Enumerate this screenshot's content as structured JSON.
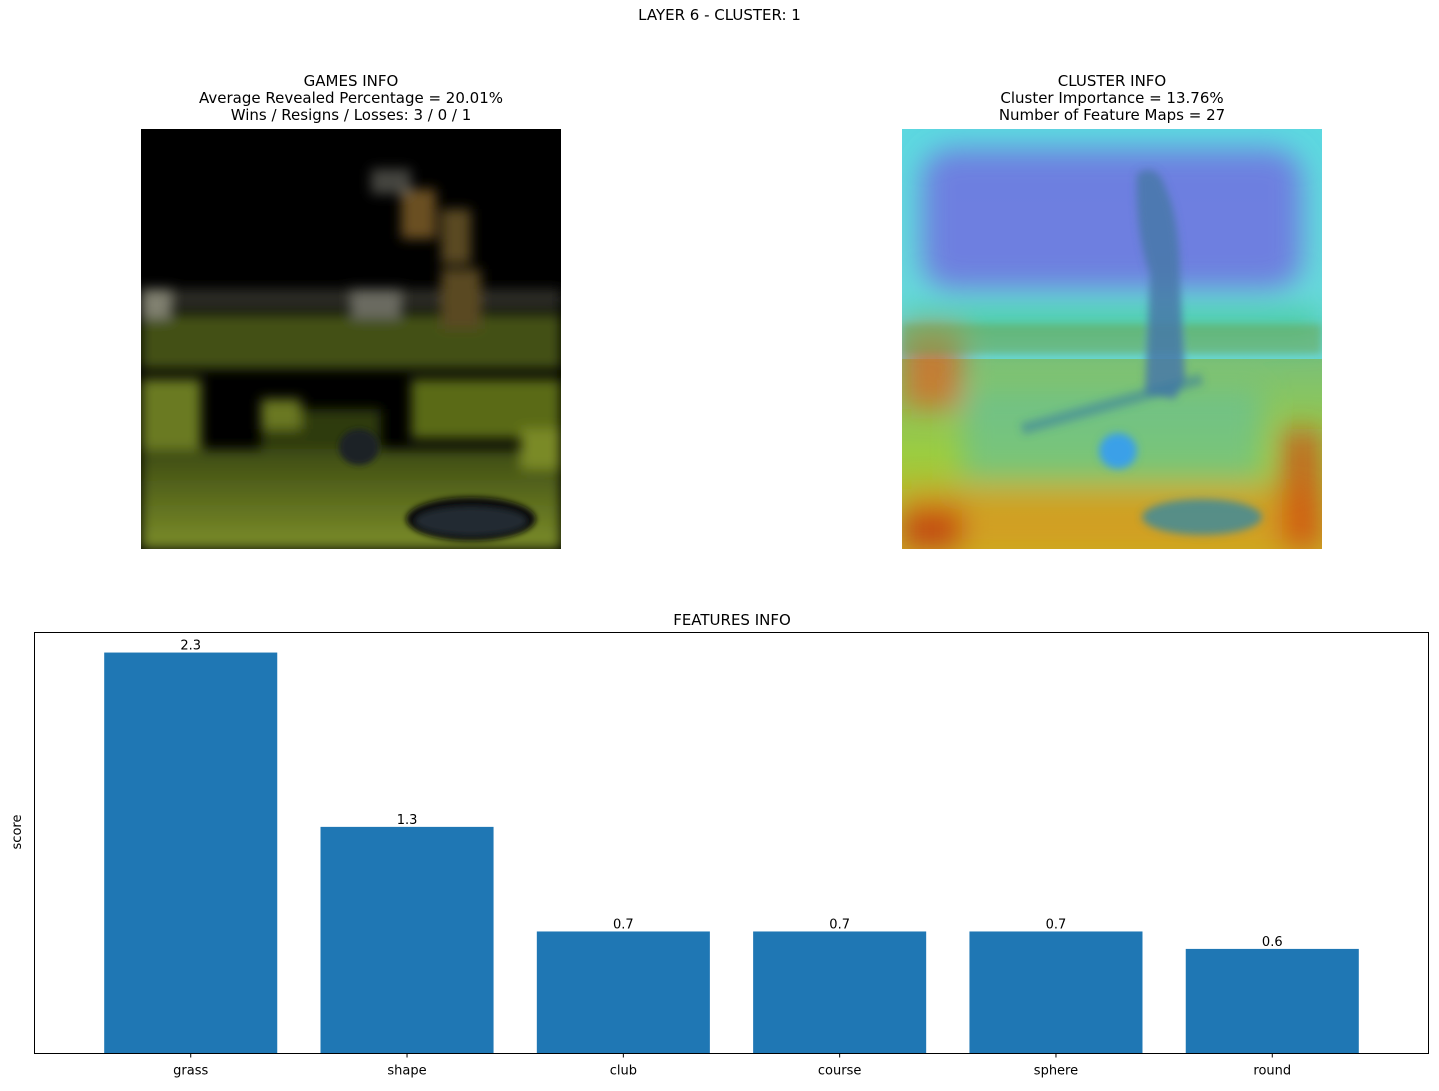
{
  "page": {
    "suptitle": "LAYER 6 - CLUSTER: 1"
  },
  "games_panel": {
    "title": "GAMES INFO",
    "line1": "Average Revealed Percentage = 20.01%",
    "line2": "Wins / Resigns / Losses: 3 / 0 / 1"
  },
  "cluster_panel": {
    "title": "CLUSTER INFO",
    "line1": "Cluster Importance = 13.76%",
    "line2": "Number of Feature Maps = 27"
  },
  "chart_data": {
    "type": "bar",
    "title": "FEATURES INFO",
    "xlabel": "",
    "ylabel": "score",
    "categories": [
      "grass",
      "shape",
      "club",
      "course",
      "sphere",
      "round"
    ],
    "values": [
      2.3,
      1.3,
      0.7,
      0.7,
      0.7,
      0.6
    ],
    "value_labels": [
      "2.3",
      "1.3",
      "0.7",
      "0.7",
      "0.7",
      "0.6"
    ],
    "ylim": [
      0,
      2.415
    ],
    "bar_color": "#1f77b4",
    "grid": false,
    "yticks_visible": false
  }
}
